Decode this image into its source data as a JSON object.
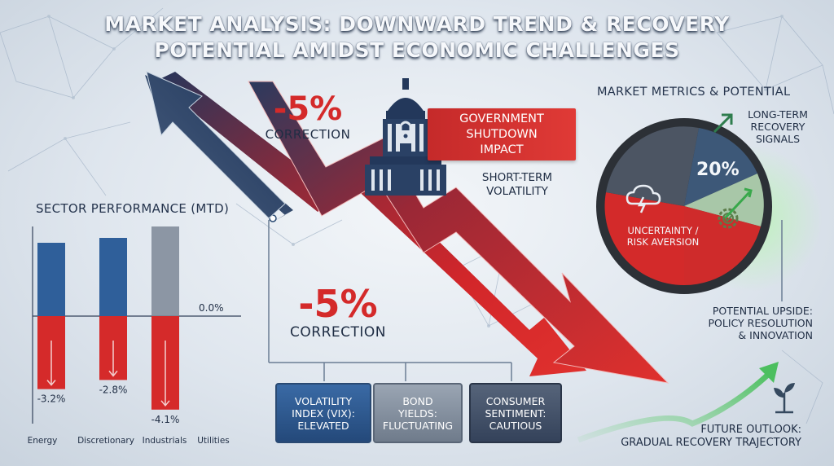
{
  "title": {
    "line1": "MARKET ANALYSIS: DOWNWARD TREND & RECOVERY",
    "line2": "POTENTIAL AMIDST ECONOMIC CHALLENGES"
  },
  "center": {
    "correction_top": {
      "value": "-5%",
      "label": "CORRECTION"
    },
    "correction_bottom": {
      "value": "-5%",
      "label": "CORRECTION"
    },
    "shutdown": {
      "line1": "GOVERNMENT",
      "line2": "SHUTDOWN",
      "line3": "IMPACT"
    },
    "short_term": {
      "line1": "SHORT-TERM",
      "line2": "VOLATILITY"
    },
    "icons": {
      "capitol": "capitol-lock-icon",
      "arrow": "down-trend-arrow"
    }
  },
  "sector_performance": {
    "heading": "SECTOR PERFORMANCE (MTD)",
    "zero_label": "0.0%"
  },
  "chart_data": {
    "type": "bar",
    "title": "SECTOR PERFORMANCE (MTD)",
    "categories": [
      "Energy",
      "Discretionary",
      "Industrials",
      "Utilities"
    ],
    "values": [
      -3.2,
      -2.8,
      -4.1,
      null
    ],
    "value_labels": [
      "-3.2%",
      "-2.8%",
      "-4.1%",
      ""
    ],
    "zero_label": "0.0%",
    "ylim": [
      -4.5,
      4.5
    ],
    "colors": {
      "positive": "#2f5f9a",
      "negative": "#d52a2a",
      "neutral": "#7c8796"
    }
  },
  "indicators": {
    "vix": {
      "line1": "VOLATILITY",
      "line2": "INDEX (VIX):",
      "line3": "ELEVATED"
    },
    "bond": {
      "line1": "BOND",
      "line2": "YIELDS:",
      "line3": "FLUCTUATING"
    },
    "consumer": {
      "line1": "CONSUMER",
      "line2": "SENTIMENT:",
      "line3": "CAUTIOUS"
    }
  },
  "metrics": {
    "heading": "MARKET METRICS & POTENTIAL",
    "long_term": {
      "line1": "LONG-TERM",
      "line2": "RECOVERY",
      "line3": "SIGNALS"
    },
    "percent": "20%",
    "uncertainty": {
      "line1": "UNCERTAINTY /",
      "line2": "RISK AVERSION"
    },
    "upside": {
      "line1": "POTENTIAL UPSIDE:",
      "line2": "POLICY RESOLUTION",
      "line3": "& INNOVATION"
    },
    "icons": {
      "cloud": "storm-cloud-icon",
      "gear": "gear-check-icon",
      "trend": "up-arrow-icon"
    }
  },
  "outlook": {
    "line1": "FUTURE OUTLOOK:",
    "line2": "GRADUAL RECOVERY TRAJECTORY",
    "icon": "sprout-icon"
  },
  "colors": {
    "navy": "#203a5f",
    "red": "#d42a2a",
    "green": "#5cc26a",
    "background": "#e4eaf0"
  }
}
